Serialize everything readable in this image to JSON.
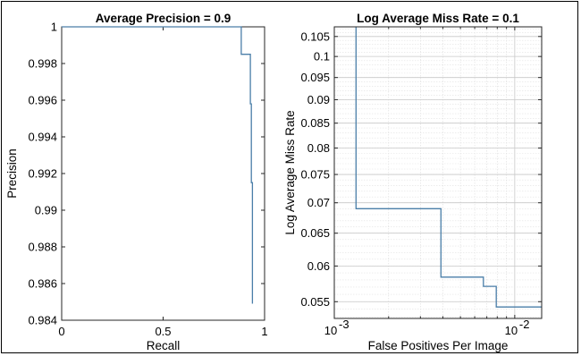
{
  "chart_data": [
    {
      "type": "line",
      "title": "Average Precision = 0.9",
      "xlabel": "Recall",
      "ylabel": "Precision",
      "xlim": [
        0,
        1
      ],
      "ylim": [
        0.984,
        1
      ],
      "x_ticks": [
        0,
        0.5,
        1
      ],
      "x_tick_labels": [
        "0",
        "0.5",
        "1"
      ],
      "y_ticks": [
        0.984,
        0.986,
        0.988,
        0.99,
        0.992,
        0.994,
        0.996,
        0.998,
        1
      ],
      "y_tick_labels": [
        "0.984",
        "0.986",
        "0.988",
        "0.99",
        "0.992",
        "0.994",
        "0.996",
        "0.998",
        "1"
      ],
      "x_scale": "linear",
      "grid": false,
      "line_color": "#4a7ea8",
      "series": [
        {
          "x": [
            0,
            0.885,
            0.885,
            0.93,
            0.93,
            0.935,
            0.935,
            0.94,
            0.94
          ],
          "y": [
            1,
            1,
            0.9985,
            0.9985,
            0.9958,
            0.9958,
            0.9915,
            0.9915,
            0.9849
          ]
        }
      ]
    },
    {
      "type": "line",
      "title": "Log Average Miss Rate = 0.1",
      "xlabel": "False Positives Per Image",
      "ylabel": "Log Average Miss Rate",
      "xlim": [
        0.001,
        0.0141
      ],
      "ylim": [
        0.0528,
        0.1075
      ],
      "x_scale": "log",
      "y_scale": "log",
      "x_ticks": [
        0.001,
        0.01
      ],
      "x_tick_labels": [
        "10",
        "10"
      ],
      "x_tick_exponents": [
        "-3",
        "-2"
      ],
      "y_ticks": [
        0.055,
        0.06,
        0.065,
        0.07,
        0.075,
        0.08,
        0.085,
        0.09,
        0.095,
        0.1,
        0.105
      ],
      "y_tick_labels": [
        "0.055",
        "0.06",
        "0.065",
        "0.07",
        "0.075",
        "0.08",
        "0.085",
        "0.09",
        "0.095",
        "0.1",
        "0.105"
      ],
      "grid": true,
      "line_color": "#4a7ea8",
      "series": [
        {
          "x": [
            0.00132,
            0.00132,
            0.0039,
            0.0039,
            0.0067,
            0.0067,
            0.0079,
            0.0079,
            0.0141
          ],
          "y": [
            0.1075,
            0.069,
            0.069,
            0.0584,
            0.0584,
            0.0571,
            0.0571,
            0.0543,
            0.0543
          ]
        }
      ]
    }
  ]
}
